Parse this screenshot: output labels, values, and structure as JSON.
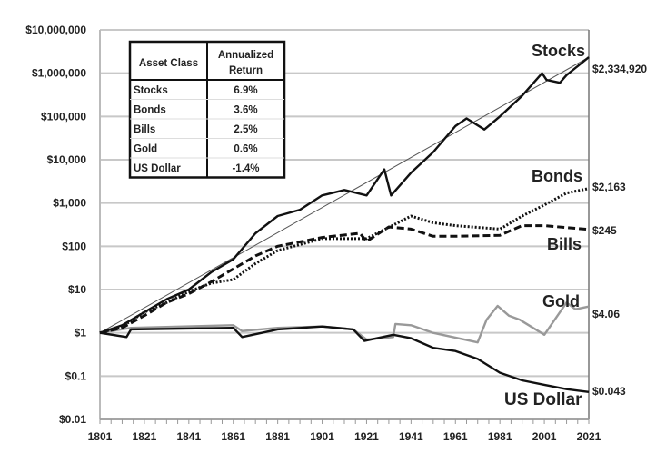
{
  "chart_data": {
    "type": "line",
    "title": "",
    "xlabel": "",
    "ylabel": "",
    "y_scale": "log",
    "ylim": [
      0.01,
      10000000
    ],
    "xlim": [
      1801,
      2021
    ],
    "grid": true,
    "y_ticks": [
      "$10,000,000",
      "$1,000,000",
      "$100,000",
      "$10,000",
      "$1,000",
      "$100",
      "$10",
      "$1",
      "$0.1",
      "$0.01"
    ],
    "y_tick_values": [
      10000000,
      1000000,
      100000,
      10000,
      1000,
      100,
      10,
      1,
      0.1,
      0.01
    ],
    "x_ticks": [
      "1801",
      "1821",
      "1841",
      "1861",
      "1881",
      "1901",
      "1921",
      "1941",
      "1961",
      "1981",
      "2001",
      "2021"
    ],
    "series": [
      {
        "name": "Stocks",
        "end_label": "$2,334,920",
        "color": "#111111",
        "style": "solid",
        "x": [
          1801,
          1811,
          1821,
          1831,
          1841,
          1851,
          1861,
          1871,
          1881,
          1891,
          1901,
          1911,
          1921,
          1929,
          1932,
          1941,
          1951,
          1961,
          1966,
          1974,
          1981,
          1991,
          2000,
          2002,
          2008,
          2011,
          2021
        ],
        "y": [
          1,
          1.5,
          3,
          6,
          10,
          25,
          50,
          200,
          500,
          700,
          1500,
          2000,
          1500,
          6000,
          1500,
          5000,
          15000,
          60000,
          90000,
          50000,
          100000,
          300000,
          1000000,
          700000,
          600000,
          900000,
          2334920
        ]
      },
      {
        "name": "Bonds",
        "end_label": "$2,163",
        "color": "#111111",
        "style": "dotted",
        "x": [
          1801,
          1811,
          1821,
          1831,
          1841,
          1851,
          1861,
          1871,
          1881,
          1901,
          1921,
          1941,
          1951,
          1961,
          1981,
          1991,
          2001,
          2011,
          2021
        ],
        "y": [
          1,
          1.4,
          3,
          5,
          9,
          14,
          17,
          40,
          80,
          150,
          150,
          500,
          350,
          300,
          250,
          500,
          900,
          1700,
          2163
        ]
      },
      {
        "name": "Bills",
        "end_label": "$245",
        "color": "#111111",
        "style": "dashed",
        "x": [
          1801,
          1811,
          1821,
          1831,
          1841,
          1851,
          1861,
          1871,
          1881,
          1901,
          1918,
          1921,
          1931,
          1941,
          1951,
          1961,
          1981,
          1991,
          2001,
          2021
        ],
        "y": [
          1,
          1.3,
          2.5,
          5,
          8,
          15,
          30,
          60,
          100,
          160,
          200,
          130,
          280,
          250,
          170,
          170,
          180,
          300,
          300,
          245
        ]
      },
      {
        "name": "Gold",
        "end_label": "$4.06",
        "color": "#999999",
        "style": "solid",
        "x": [
          1801,
          1815,
          1861,
          1865,
          1881,
          1901,
          1915,
          1921,
          1933,
          1934,
          1941,
          1951,
          1971,
          1975,
          1980,
          1985,
          1990,
          2001,
          2011,
          2015,
          2021
        ],
        "y": [
          1,
          1.3,
          1.5,
          1.1,
          1.3,
          1.4,
          1.2,
          0.7,
          0.8,
          1.6,
          1.5,
          1,
          0.6,
          2,
          4.2,
          2.5,
          2,
          0.9,
          5,
          3.5,
          4.06
        ]
      },
      {
        "name": "US Dollar",
        "end_label": "$0.043",
        "color": "#111111",
        "style": "solid",
        "x": [
          1801,
          1813,
          1815,
          1861,
          1865,
          1881,
          1901,
          1915,
          1920,
          1933,
          1941,
          1951,
          1961,
          1971,
          1981,
          1991,
          2001,
          2011,
          2021
        ],
        "y": [
          1,
          0.8,
          1.2,
          1.3,
          0.8,
          1.2,
          1.4,
          1.2,
          0.65,
          0.9,
          0.75,
          0.45,
          0.38,
          0.25,
          0.12,
          0.08,
          0.063,
          0.05,
          0.043
        ]
      }
    ],
    "trend_line": {
      "from": [
        1801,
        1
      ],
      "to": [
        2021,
        2334920
      ]
    },
    "table": {
      "headers": [
        "Asset Class",
        "Annualized Return"
      ],
      "rows": [
        [
          "Stocks",
          "6.9%"
        ],
        [
          "Bonds",
          "3.6%"
        ],
        [
          "Bills",
          "2.5%"
        ],
        [
          "Gold",
          "0.6%"
        ],
        [
          "US Dollar",
          "-1.4%"
        ]
      ]
    }
  }
}
